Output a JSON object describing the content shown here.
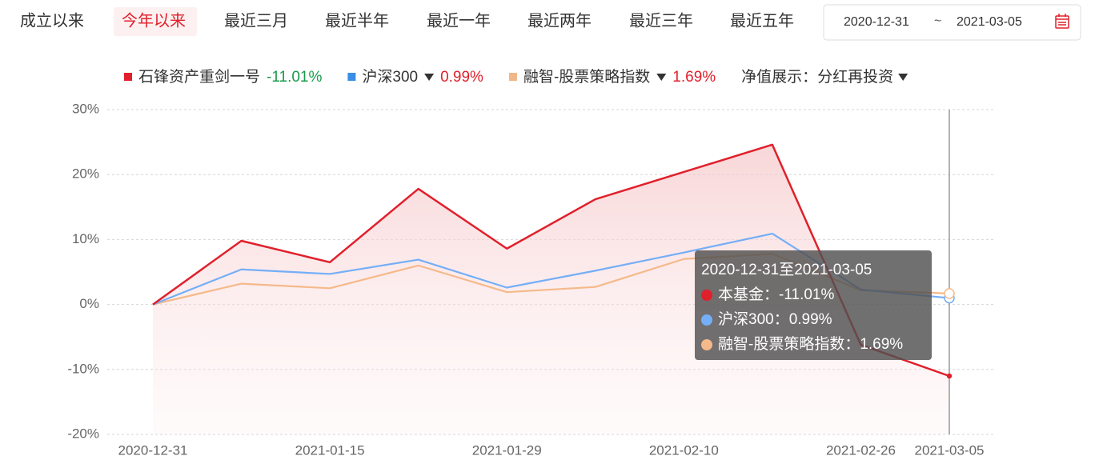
{
  "tabs": [
    "成立以来",
    "今年以来",
    "最近三月",
    "最近半年",
    "最近一年",
    "最近两年",
    "最近三年",
    "最近五年"
  ],
  "date_range": {
    "start": "2020-12-31",
    "separator": "~",
    "end": "2021-03-05"
  },
  "display_option": {
    "label": "净值展示：分红再投资"
  },
  "tooltip": {
    "title": "2020-12-31至2021-03-05",
    "items": [
      {
        "label": "本基金：",
        "value_label": "-11.01%"
      },
      {
        "label": "沪深300：",
        "value_label": "0.99%"
      },
      {
        "label": "融智-股票策略指数：",
        "value_label": "1.69%"
      }
    ]
  },
  "chart_data": {
    "type": "line",
    "categories": [
      "2020-12-31",
      null,
      "2021-01-15",
      null,
      "2021-01-29",
      null,
      "2021-02-10",
      null,
      "2021-02-26",
      "2021-03-05"
    ],
    "series": [
      {
        "name": "石锋资产重剑一号",
        "color": "#e0202b",
        "legend_color": "#e0202b",
        "legend_value_label": "-11.01%",
        "legend_value_color": "#1a9a4a",
        "area": true,
        "values": [
          0,
          9.8,
          6.5,
          17.8,
          8.6,
          16.2,
          20.4,
          24.6,
          -6.2,
          -11.01
        ]
      },
      {
        "name": "沪深300",
        "color": "#74aef7",
        "legend_color": "#3a8ee6",
        "legend_value_label": "0.99%",
        "legend_value_color": "#e0202b",
        "dropdown": true,
        "values": [
          0,
          5.4,
          4.7,
          6.9,
          2.6,
          5.2,
          8.0,
          10.9,
          2.3,
          0.99
        ]
      },
      {
        "name": "融智-股票策略指数",
        "color": "#f5b98a",
        "legend_color": "#f0b88a",
        "legend_value_label": "1.69%",
        "legend_value_color": "#e0202b",
        "dropdown": true,
        "values": [
          0,
          3.2,
          2.5,
          6.0,
          1.9,
          2.7,
          7.0,
          7.8,
          2.2,
          1.69
        ]
      }
    ],
    "ylim": [
      -20,
      30
    ],
    "yticks": [
      {
        "value": -20,
        "label": "-20%"
      },
      {
        "value": -10,
        "label": "-10%"
      },
      {
        "value": 0,
        "label": "0%"
      },
      {
        "value": 10,
        "label": "10%"
      },
      {
        "value": 20,
        "label": "20%"
      },
      {
        "value": 30,
        "label": "30%"
      }
    ],
    "grid": true
  }
}
